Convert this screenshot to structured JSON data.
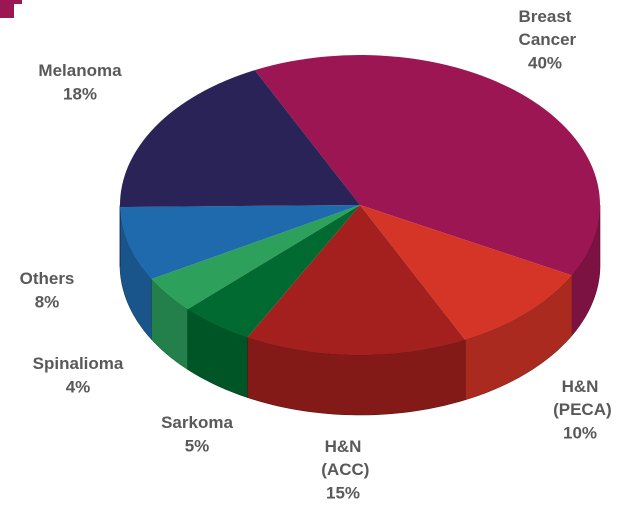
{
  "chart_data": {
    "type": "pie3d",
    "categories": [
      "Breast Cancer",
      "H&N (PECA)",
      "H&N (ACC)",
      "Sarkoma",
      "Spinalioma",
      "Others",
      "Melanoma"
    ],
    "values": [
      40,
      10,
      15,
      5,
      4,
      8,
      18
    ],
    "value_labels": [
      "40%",
      "10%",
      "15%",
      "5%",
      "4%",
      "8%",
      "18%"
    ],
    "colors": [
      "#9b1652",
      "#d53527",
      "#a4201e",
      "#006a30",
      "#2da05c",
      "#1f6aad",
      "#2a2358"
    ]
  }
}
